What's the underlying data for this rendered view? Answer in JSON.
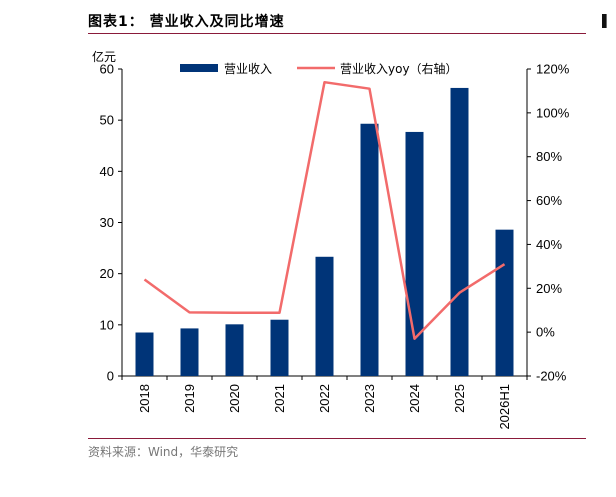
{
  "header": {
    "title": "图表1：  营业收入及同比增速"
  },
  "footer": {
    "source": "资料来源：Wind，华泰研究"
  },
  "colors": {
    "bar": "#003478",
    "line": "#f26b6b",
    "rule": "#8a1a3a"
  },
  "chart_data": {
    "type": "bar",
    "categories": [
      "2018",
      "2019",
      "2020",
      "2021",
      "2022",
      "2023",
      "2024",
      "2025",
      "2026H1"
    ],
    "series": [
      {
        "name": "营业收入",
        "type": "bar",
        "axis": "left",
        "values": [
          8.5,
          9.3,
          10.1,
          11.0,
          23.3,
          49.3,
          47.7,
          56.3,
          28.6
        ]
      },
      {
        "name": "营业收入yoy（右轴）",
        "type": "line",
        "axis": "right",
        "values": [
          24,
          9,
          8.8,
          8.8,
          114,
          111,
          -3,
          18,
          31
        ]
      }
    ],
    "ylabel": "亿元",
    "ylim": [
      0,
      60
    ],
    "y_ticks": [
      "0",
      "10",
      "20",
      "30",
      "40",
      "50",
      "60"
    ],
    "y2lim": [
      -20,
      120
    ],
    "y2_ticks": [
      "-20%",
      "0%",
      "20%",
      "40%",
      "60%",
      "80%",
      "100%",
      "120%"
    ],
    "legend_position": "top"
  }
}
